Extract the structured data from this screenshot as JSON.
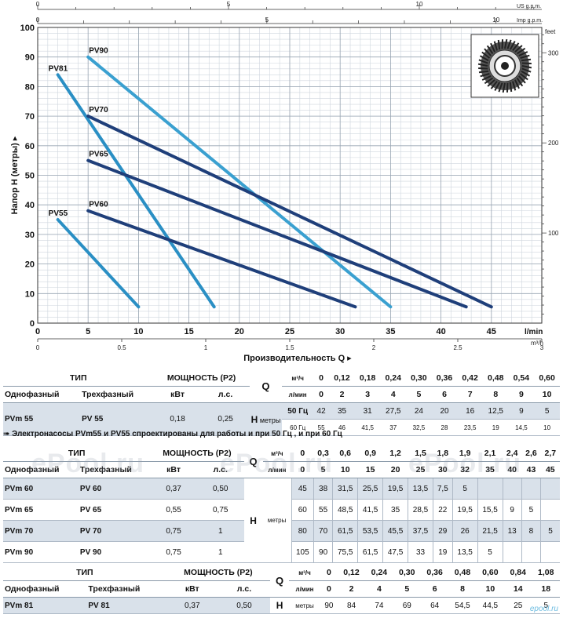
{
  "chart_data": {
    "type": "line",
    "ylabel": "Напор H (метры)",
    "xlabel": "Производительность Q",
    "x_unit_lmin": "l/min",
    "x_unit_m3h": "m³/h",
    "top_unit_us": "US g.p.m.",
    "top_unit_imp": "Imp g.p.m.",
    "right_unit": "feet",
    "xlim": [
      0,
      50
    ],
    "ylim": [
      0,
      100
    ],
    "x_ticks": [
      "0",
      "5",
      "10",
      "15",
      "20",
      "25",
      "30",
      "35",
      "40",
      "45"
    ],
    "y_ticks": [
      "0",
      "10",
      "20",
      "30",
      "40",
      "50",
      "60",
      "70",
      "80",
      "90",
      "100"
    ],
    "m3h_ticks": [
      "0",
      "0.5",
      "1",
      "1.5",
      "2",
      "2.5",
      "3"
    ],
    "us_ticks": [
      "0",
      "5",
      "10"
    ],
    "imp_ticks": [
      "0",
      "5",
      "10"
    ],
    "feet_ticks": [
      "100",
      "200",
      "300"
    ],
    "series": [
      {
        "name": "PV81",
        "color": "#2a8fc4",
        "x": [
          2,
          17.5
        ],
        "y": [
          84,
          5.5
        ]
      },
      {
        "name": "PV90",
        "color": "#3aa0d0",
        "x": [
          5,
          35
        ],
        "y": [
          90,
          5.5
        ]
      },
      {
        "name": "PV70",
        "color": "#1f3f7a",
        "x": [
          5,
          45
        ],
        "y": [
          70,
          5.5
        ]
      },
      {
        "name": "PV65",
        "color": "#1f3f7a",
        "x": [
          5,
          42.5
        ],
        "y": [
          55,
          5.5
        ]
      },
      {
        "name": "PV60",
        "color": "#1f3f7a",
        "x": [
          5,
          31.5
        ],
        "y": [
          38,
          5.5
        ]
      },
      {
        "name": "PV55",
        "color": "#2a8fc4",
        "x": [
          2,
          10
        ],
        "y": [
          35,
          5.5
        ]
      }
    ]
  },
  "table1": {
    "h_tip": "ТИП",
    "h_power": "МОЩНОСТЬ (P2)",
    "h_single": "Однофазный",
    "h_three": "Трехфазный",
    "h_kw": "кВт",
    "h_hp": "л.с.",
    "q": "Q",
    "u_m3": "м³/ч",
    "u_lmin": "л/мин",
    "m3": [
      "0",
      "0,12",
      "0,18",
      "0,24",
      "0,30",
      "0,36",
      "0,42",
      "0,48",
      "0,54",
      "0,60"
    ],
    "lmin": [
      "0",
      "2",
      "3",
      "4",
      "5",
      "6",
      "7",
      "8",
      "9",
      "10"
    ],
    "row": {
      "single": "PVm 55",
      "three": "PV 55",
      "kw": "0,18",
      "hp": "0,25",
      "h": "H",
      "u": "метры",
      "f50": "50 Гц",
      "f60": "60 Гц",
      "v50": [
        "42",
        "35",
        "31",
        "27,5",
        "24",
        "20",
        "16",
        "12,5",
        "9",
        "5"
      ],
      "v60": [
        "55",
        "46",
        "41,5",
        "37",
        "32,5",
        "28",
        "23,5",
        "19",
        "14,5",
        "10"
      ]
    }
  },
  "note": "➠ Электронасосы PVm55 и PV55 спроектированы для работы и при 50 Гц , и при 60 Гц",
  "table2": {
    "h_tip": "ТИП",
    "h_power": "МОЩНОСТЬ (P2)",
    "h_single": "Однофазный",
    "h_three": "Трехфазный",
    "h_kw": "кВт",
    "h_hp": "л.с.",
    "q": "Q",
    "u_m3": "м³/ч",
    "u_lmin": "л/мин",
    "h": "H",
    "u": "метры",
    "m3": [
      "0",
      "0,3",
      "0,6",
      "0,9",
      "1,2",
      "1,5",
      "1,8",
      "1,9",
      "2,1",
      "2,4",
      "2,6",
      "2,7"
    ],
    "lmin": [
      "0",
      "5",
      "10",
      "15",
      "20",
      "25",
      "30",
      "32",
      "35",
      "40",
      "43",
      "45"
    ],
    "rows": [
      {
        "single": "PVm 60",
        "three": "PV 60",
        "kw": "0,37",
        "hp": "0,50",
        "v": [
          "45",
          "38",
          "31,5",
          "25,5",
          "19,5",
          "13,5",
          "7,5",
          "5",
          "",
          "",
          "",
          ""
        ]
      },
      {
        "single": "PVm 65",
        "three": "PV 65",
        "kw": "0,55",
        "hp": "0,75",
        "v": [
          "60",
          "55",
          "48,5",
          "41,5",
          "35",
          "28,5",
          "22",
          "19,5",
          "15,5",
          "9",
          "5",
          ""
        ]
      },
      {
        "single": "PVm 70",
        "three": "PV 70",
        "kw": "0,75",
        "hp": "1",
        "v": [
          "80",
          "70",
          "61,5",
          "53,5",
          "45,5",
          "37,5",
          "29",
          "26",
          "21,5",
          "13",
          "8",
          "5"
        ]
      },
      {
        "single": "PVm 90",
        "three": "PV 90",
        "kw": "0,75",
        "hp": "1",
        "v": [
          "105",
          "90",
          "75,5",
          "61,5",
          "47,5",
          "33",
          "19",
          "13,5",
          "5",
          "",
          "",
          ""
        ]
      }
    ]
  },
  "table3": {
    "h_tip": "ТИП",
    "h_power": "МОЩНОСТЬ (P2)",
    "h_single": "Однофазный",
    "h_three": "Трехфазный",
    "h_kw": "кВт",
    "h_hp": "л.с.",
    "q": "Q",
    "u_m3": "м³/ч",
    "u_lmin": "л/мин",
    "h": "H",
    "u": "метры",
    "m3": [
      "0",
      "0,12",
      "0,24",
      "0,30",
      "0,36",
      "0,48",
      "0,60",
      "0,84",
      "1,08"
    ],
    "lmin": [
      "0",
      "2",
      "4",
      "5",
      "6",
      "8",
      "10",
      "14",
      "18"
    ],
    "row": {
      "single": "PVm 81",
      "three": "PV 81",
      "kw": "0,37",
      "hp": "0,50",
      "v": [
        "90",
        "84",
        "74",
        "69",
        "64",
        "54,5",
        "44,5",
        "25",
        "5"
      ]
    }
  },
  "watermark": "ePool.ru",
  "logo": "epool.ru"
}
